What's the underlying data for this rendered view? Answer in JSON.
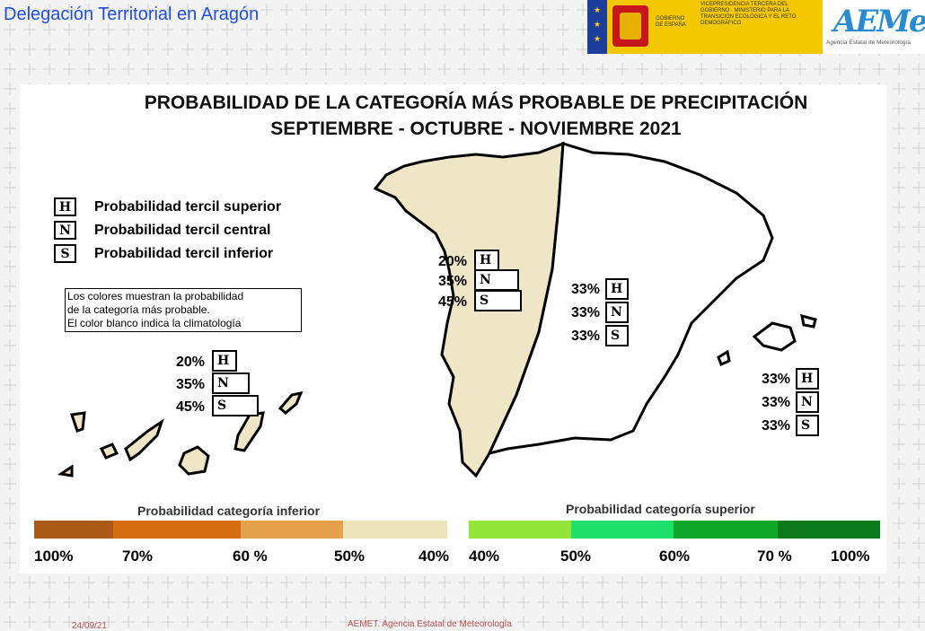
{
  "header": {
    "title": "Delegación Territorial en Aragón"
  },
  "logos": {
    "gov_label": "GOBIERNO DE ESPAÑA",
    "ministry_label": "VICEPRESIDENCIA TERCERA DEL GOBIERNO · MINISTERIO PARA LA TRANSICIÓN ECOLÓGICA Y EL RETO DEMOGRÁFICO",
    "aemet_logo": "AEMet",
    "aemet_sub": "Agencia Estatal de Meteorología"
  },
  "map": {
    "title_line1": "PROBABILIDAD DE LA  CATEGORÍA MÁS PROBABLE DE PRECIPITACIÓN",
    "title_line2": "SEPTIEMBRE - OCTUBRE - NOVIEMBRE 2021",
    "legend": [
      {
        "code": "H",
        "label": "Probabilidad  tercil superior"
      },
      {
        "code": "N",
        "label": "Probabilidad  tercil central"
      },
      {
        "code": "S",
        "label": "Probabilidad  tercil inferior"
      }
    ],
    "note_lines": [
      "Los colores muestran la probabilidad",
      "de la categoría más probable.",
      "El color blanco indica la climatología"
    ],
    "regions": [
      {
        "name": "canarias",
        "H": "20%",
        "N": "35%",
        "S": "45%",
        "color": "#efe6c8"
      },
      {
        "name": "west-peninsula",
        "H": "20%",
        "N": "35%",
        "S": "45%",
        "color": "#efe6c8"
      },
      {
        "name": "east-peninsula",
        "H": "33%",
        "N": "33%",
        "S": "33%",
        "color": "#ffffff"
      },
      {
        "name": "baleares",
        "H": "33%",
        "N": "33%",
        "S": "33%",
        "color": "#ffffff"
      }
    ]
  },
  "scale": {
    "lower_title": "Probabilidad categoría inferior",
    "upper_title": "Probabilidad categoría superior",
    "lower_colors": [
      "#a85a16",
      "#d46c10",
      "#e4a04a",
      "#ece3b8"
    ],
    "upper_colors": [
      "#92e63a",
      "#1de06a",
      "#11a82a",
      "#0c7a1c"
    ],
    "lower_ticks": [
      "100%",
      "70%",
      "60 %",
      "50%",
      "40%"
    ],
    "upper_ticks": [
      "40%",
      "50%",
      "60%",
      "70 %",
      "100%"
    ]
  },
  "footer": {
    "date": "24/09/21",
    "agency": "AEMET. Agencia Estatal de Meteorología"
  }
}
